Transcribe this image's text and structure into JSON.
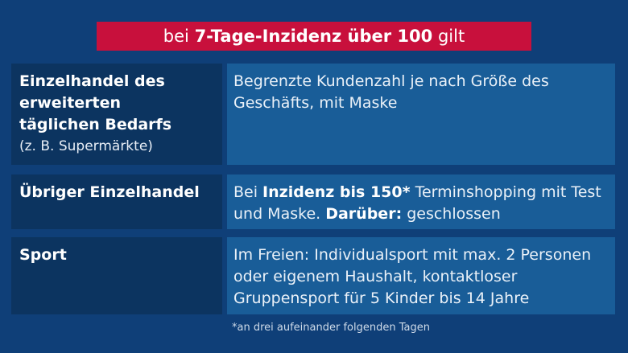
{
  "banner": {
    "prefix": "bei ",
    "highlight": "7-Tage-Inzidenz über 100",
    "suffix": " gilt"
  },
  "rows": [
    {
      "category": "Einzelhandel des erweiterten täglichen Bedarfs",
      "category_note": "(z. B. Supermärkte)",
      "rule": "Begrenzte Kundenzahl je nach Größe des Geschäfts, mit Maske"
    },
    {
      "category": "Übriger Einzelhandel",
      "rule_parts": {
        "p1": "Bei ",
        "b1": "Inzidenz bis 150*",
        "p2": " Terminshopping mit Test und Maske. ",
        "b2": "Darüber:",
        "p3": " geschlossen"
      }
    },
    {
      "category": "Sport",
      "rule": "Im Freien: Individualsport mit max. 2 Personen oder eigenem Haushalt, kontaktloser Gruppensport für 5 Kinder bis 14 Jahre"
    }
  ],
  "footnote": "*an drei aufeinander folgenden Tagen"
}
